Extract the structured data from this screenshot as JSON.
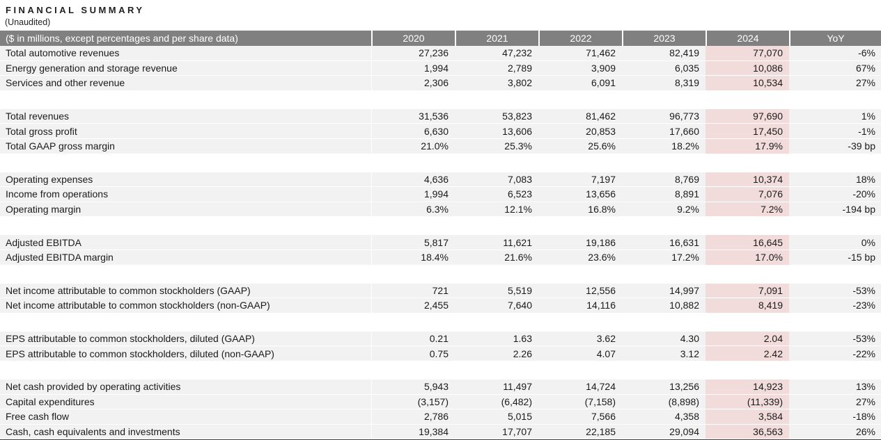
{
  "title": "FINANCIAL SUMMARY",
  "subtitle": "(Unaudited)",
  "colors": {
    "header_bg": "#808080",
    "header_text": "#ffffff",
    "row_bg": "#f2f2f2",
    "highlight_bg": "#f2dcdb",
    "bottom_border": "#3f3f3f"
  },
  "table": {
    "header": {
      "label": "($ in millions, except percentages and per share data)",
      "columns": [
        "2020",
        "2021",
        "2022",
        "2023",
        "2024",
        "YoY"
      ]
    },
    "highlighted_column": "2024",
    "sections": [
      {
        "rows": [
          {
            "label": "Total automotive revenues",
            "values": [
              "27,236",
              "47,232",
              "71,462",
              "82,419",
              "77,070",
              "-6%"
            ]
          },
          {
            "label": "Energy generation and storage revenue",
            "values": [
              "1,994",
              "2,789",
              "3,909",
              "6,035",
              "10,086",
              "67%"
            ]
          },
          {
            "label": "Services and other revenue",
            "values": [
              "2,306",
              "3,802",
              "6,091",
              "8,319",
              "10,534",
              "27%"
            ]
          }
        ]
      },
      {
        "rows": [
          {
            "label": "Total revenues",
            "values": [
              "31,536",
              "53,823",
              "81,462",
              "96,773",
              "97,690",
              "1%"
            ]
          },
          {
            "label": "Total gross profit",
            "values": [
              "6,630",
              "13,606",
              "20,853",
              "17,660",
              "17,450",
              "-1%"
            ]
          },
          {
            "label": "Total GAAP gross margin",
            "values": [
              "21.0%",
              "25.3%",
              "25.6%",
              "18.2%",
              "17.9%",
              "-39 bp"
            ]
          }
        ]
      },
      {
        "rows": [
          {
            "label": "Operating expenses",
            "values": [
              "4,636",
              "7,083",
              "7,197",
              "8,769",
              "10,374",
              "18%"
            ]
          },
          {
            "label": "Income from operations",
            "values": [
              "1,994",
              "6,523",
              "13,656",
              "8,891",
              "7,076",
              "-20%"
            ]
          },
          {
            "label": "Operating margin",
            "values": [
              "6.3%",
              "12.1%",
              "16.8%",
              "9.2%",
              "7.2%",
              "-194 bp"
            ]
          }
        ]
      },
      {
        "rows": [
          {
            "label": "Adjusted EBITDA",
            "values": [
              "5,817",
              "11,621",
              "19,186",
              "16,631",
              "16,645",
              "0%"
            ]
          },
          {
            "label": "Adjusted EBITDA margin",
            "values": [
              "18.4%",
              "21.6%",
              "23.6%",
              "17.2%",
              "17.0%",
              "-15 bp"
            ]
          }
        ]
      },
      {
        "rows": [
          {
            "label": "Net income attributable to common stockholders (GAAP)",
            "values": [
              "721",
              "5,519",
              "12,556",
              "14,997",
              "7,091",
              "-53%"
            ]
          },
          {
            "label": "Net income attributable to common stockholders (non-GAAP)",
            "values": [
              "2,455",
              "7,640",
              "14,116",
              "10,882",
              "8,419",
              "-23%"
            ]
          }
        ]
      },
      {
        "rows": [
          {
            "label": "EPS attributable to common stockholders, diluted (GAAP)",
            "values": [
              "0.21",
              "1.63",
              "3.62",
              "4.30",
              "2.04",
              "-53%"
            ]
          },
          {
            "label": "EPS attributable to common stockholders, diluted (non-GAAP)",
            "values": [
              "0.75",
              "2.26",
              "4.07",
              "3.12",
              "2.42",
              "-22%"
            ]
          }
        ]
      },
      {
        "rows": [
          {
            "label": "Net cash provided by operating activities",
            "values": [
              "5,943",
              "11,497",
              "14,724",
              "13,256",
              "14,923",
              "13%"
            ]
          },
          {
            "label": "Capital expenditures",
            "values": [
              "(3,157)",
              "(6,482)",
              "(7,158)",
              "(8,898)",
              "(11,339)",
              "27%"
            ]
          },
          {
            "label": "Free cash flow",
            "values": [
              "2,786",
              "5,015",
              "7,566",
              "4,358",
              "3,584",
              "-18%"
            ]
          },
          {
            "label": "Cash, cash equivalents and investments",
            "values": [
              "19,384",
              "17,707",
              "22,185",
              "29,094",
              "36,563",
              "26%"
            ]
          }
        ]
      }
    ]
  }
}
